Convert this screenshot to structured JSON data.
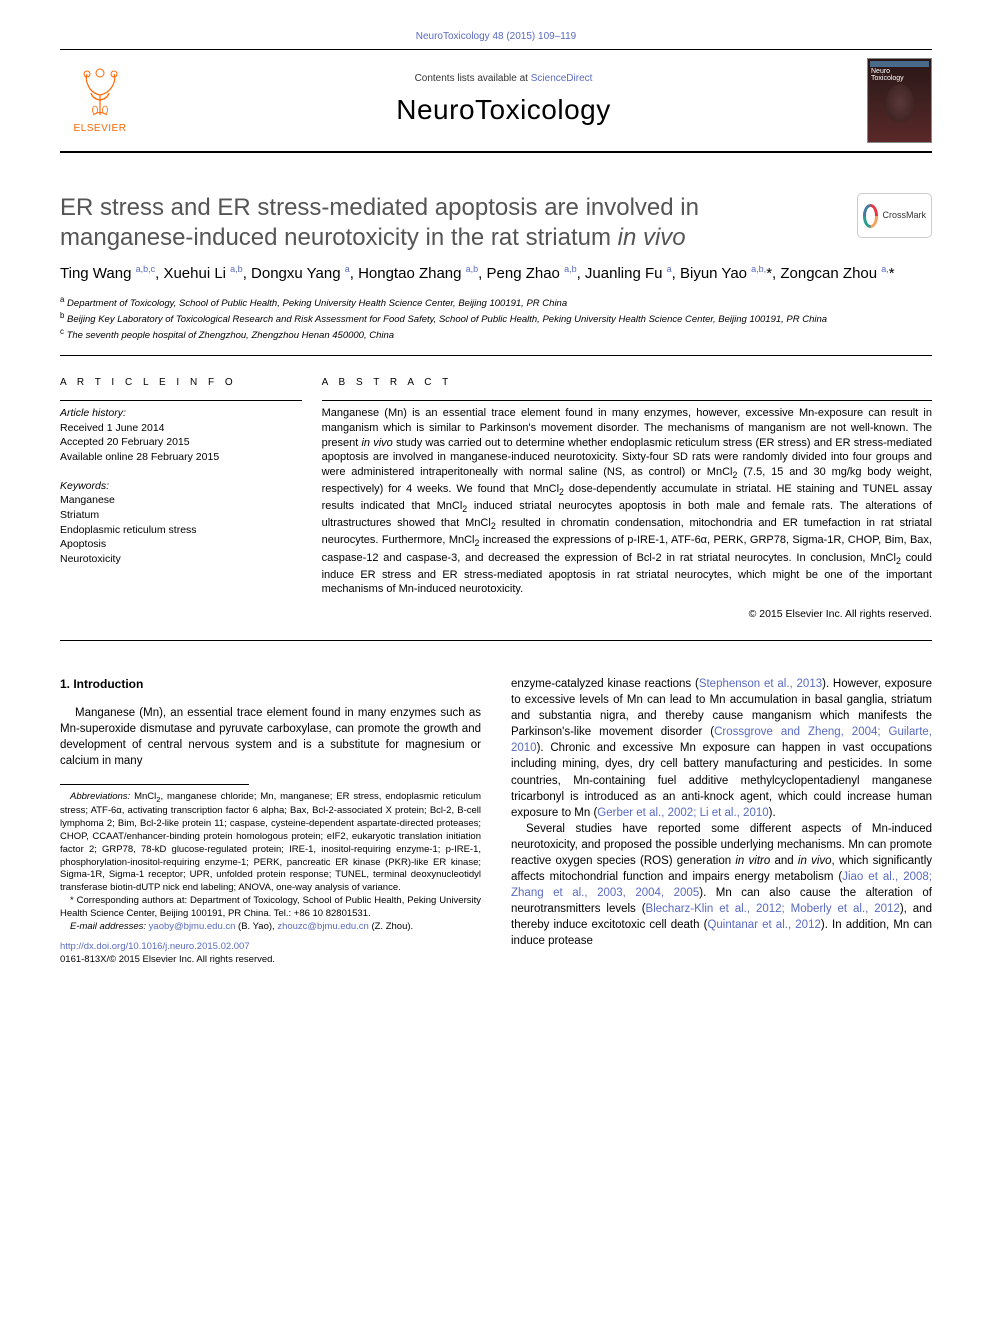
{
  "topLink": "NeuroToxicology 48 (2015) 109–119",
  "header": {
    "contents_prefix": "Contents lists available at ",
    "contents_link": "ScienceDirect",
    "journal": "NeuroToxicology",
    "publisher": "ELSEVIER",
    "cover_line1": "Neuro",
    "cover_line2": "Toxicology"
  },
  "title_html": "ER stress and ER stress-mediated apoptosis are involved in manganese-induced neurotoxicity in the rat striatum <em>in vivo</em>",
  "crossmark": "CrossMark",
  "authors_html": "Ting Wang <sup>a,b,c</sup>, Xuehui Li <sup>a,b</sup>, Dongxu Yang <sup>a</sup>, Hongtao Zhang <sup>a,b</sup>, Peng Zhao <sup>a,b</sup>, Juanling Fu <sup>a</sup>, Biyun Yao <sup>a,b,</sup><span class='star'>*</span>, Zongcan Zhou <sup>a,</sup><span class='star'>*</span>",
  "affiliations": [
    {
      "sup": "a",
      "text": "Department of Toxicology, School of Public Health, Peking University Health Science Center, Beijing 100191, PR China"
    },
    {
      "sup": "b",
      "text": "Beijing Key Laboratory of Toxicological Research and Risk Assessment for Food Safety, School of Public Health, Peking University Health Science Center, Beijing 100191, PR China"
    },
    {
      "sup": "c",
      "text": "The seventh people hospital of Zhengzhou, Zhengzhou Henan 450000, China"
    }
  ],
  "info": {
    "label": "A R T I C L E   I N F O",
    "history_label": "Article history:",
    "received": "Received 1 June 2014",
    "accepted": "Accepted 20 February 2015",
    "online": "Available online 28 February 2015",
    "keywords_label": "Keywords:",
    "keywords": [
      "Manganese",
      "Striatum",
      "Endoplasmic reticulum stress",
      "Apoptosis",
      "Neurotoxicity"
    ]
  },
  "abstract": {
    "label": "A B S T R A C T",
    "text_html": "Manganese (Mn) is an essential trace element found in many enzymes, however, excessive Mn-exposure can result in manganism which is similar to Parkinson's movement disorder. The mechanisms of manganism are not well-known. The present <em>in vivo</em> study was carried out to determine whether endoplasmic reticulum stress (ER stress) and ER stress-mediated apoptosis are involved in manganese-induced neurotoxicity. Sixty-four SD rats were randomly divided into four groups and were administered intraperitoneally with normal saline (NS, as control) or MnCl<span class='subscript'>2</span> (7.5, 15 and 30 mg/kg body weight, respectively) for 4 weeks. We found that MnCl<span class='subscript'>2</span> dose-dependently accumulate in striatal. HE staining and TUNEL assay results indicated that MnCl<span class='subscript'>2</span> induced striatal neurocytes apoptosis in both male and female rats. The alterations of ultrastructures showed that MnCl<span class='subscript'>2</span> resulted in chromatin condensation, mitochondria and ER tumefaction in rat striatal neurocytes. Furthermore, MnCl<span class='subscript'>2</span> increased the expressions of p-IRE-1, ATF-6α, PERK, GRP78, Sigma-1R, CHOP, Bim, Bax, caspase-12 and caspase-3, and decreased the expression of Bcl-2 in rat striatal neurocytes. In conclusion, MnCl<span class='subscript'>2</span> could induce ER stress and ER stress-mediated apoptosis in rat striatal neurocytes, which might be one of the important mechanisms of Mn-induced neurotoxicity.",
    "copyright": "© 2015 Elsevier Inc. All rights reserved."
  },
  "body": {
    "heading1": "1. Introduction",
    "para1": "Manganese (Mn), an essential trace element found in many enzymes such as Mn-superoxide dismutase and pyruvate carboxylase, can promote the growth and development of central nervous system and is a substitute for magnesium or calcium in many",
    "para2_html": "enzyme-catalyzed kinase reactions (<span class='ref'>Stephenson et al., 2013</span>). However, exposure to excessive levels of Mn can lead to Mn accumulation in basal ganglia, striatum and substantia nigra, and thereby cause manganism which manifests the Parkinson's-like movement disorder (<span class='ref'>Crossgrove and Zheng, 2004; Guilarte, 2010</span>). Chronic and excessive Mn exposure can happen in vast occupations including mining, dyes, dry cell battery manufacturing and pesticides. In some countries, Mn-containing fuel additive methylcyclopentadienyl manganese tricarbonyl is introduced as an anti-knock agent, which could increase human exposure to Mn (<span class='ref'>Gerber et al., 2002; Li et al., 2010</span>).",
    "para3_html": "Several studies have reported some different aspects of Mn-induced neurotoxicity, and proposed the possible underlying mechanisms. Mn can promote reactive oxygen species (ROS) generation <em>in vitro</em> and <em>in vivo</em>, which significantly affects mitochondrial function and impairs energy metabolism (<span class='ref'>Jiao et al., 2008; Zhang et al., 2003, 2004, 2005</span>). Mn can also cause the alteration of neurotransmitters levels (<span class='ref'>Blecharz-Klin et al., 2012; Moberly et al., 2012</span>), and thereby induce excitotoxic cell death (<span class='ref'>Quintanar et al., 2012</span>). In addition, Mn can induce protease"
  },
  "footnotes": {
    "abbrev_html": "<em>Abbreviations:</em> MnCl<span class='subscript'>2</span>, manganese chloride; Mn, manganese; ER stress, endoplasmic reticulum stress; ATF-6α, activating transcription factor 6 alpha; Bax, Bcl-2-associated X protein; Bcl-2, B-cell lymphoma 2; Bim, Bcl-2-like protein 11; caspase, cysteine-dependent aspartate-directed proteases; CHOP, CCAAT/enhancer-binding protein homologous protein; eIF2, eukaryotic translation initiation factor 2; GRP78, 78-kD glucose-regulated protein; IRE-1, inositol-requiring enzyme-1; p-IRE-1, phosphorylation-inositol-requiring enzyme-1; PERK, pancreatic ER kinase (PKR)-like ER kinase; Sigma-1R, Sigma-1 receptor; UPR, unfolded protein response; TUNEL, terminal deoxynucleotidyl transferase biotin-dUTP nick end labeling; ANOVA, one-way analysis of variance.",
    "corresponding": "* Corresponding authors at: Department of Toxicology, School of Public Health, Peking University Health Science Center, Beijing 100191, PR China. Tel.: +86 10 82801531.",
    "email_label": "E-mail addresses: ",
    "email1": "yaoby@bjmu.edu.cn",
    "email1_person": " (B. Yao), ",
    "email2": "zhouzc@bjmu.edu.cn",
    "email2_person": " (Z. Zhou)."
  },
  "doi": {
    "link": "http://dx.doi.org/10.1016/j.neuro.2015.02.007",
    "issn": "0161-813X/© 2015 Elsevier Inc. All rights reserved."
  },
  "colors": {
    "link": "#5a6bbf",
    "title_gray": "#555555",
    "elsevier_orange": "#ff6600"
  }
}
